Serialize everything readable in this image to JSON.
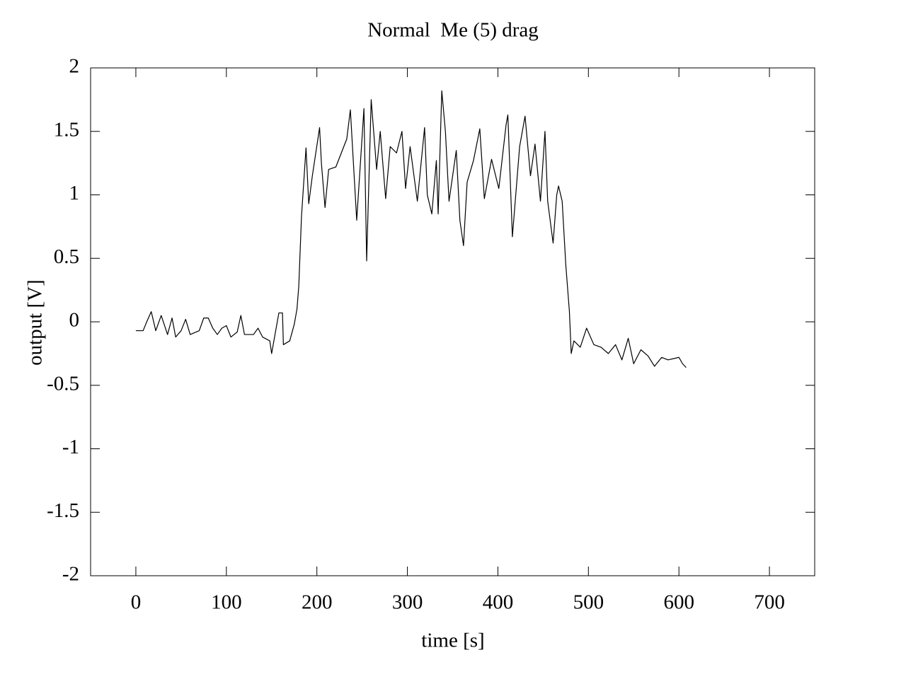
{
  "chart_data": {
    "type": "line",
    "title": "Normal  Me (5) drag",
    "xlabel": "time [s]",
    "ylabel": "output [V]",
    "xlim": [
      -50,
      750
    ],
    "ylim": [
      -2,
      2
    ],
    "xticks": [
      0,
      100,
      200,
      300,
      400,
      500,
      600,
      700
    ],
    "yticks": [
      -2,
      -1.5,
      -1,
      -0.5,
      0,
      0.5,
      1,
      1.5,
      2
    ],
    "series": [
      {
        "color": "#000000",
        "x": [
          0,
          8,
          12,
          17,
          22,
          28,
          35,
          40,
          44,
          50,
          55,
          60,
          70,
          75,
          80,
          85,
          90,
          95,
          100,
          105,
          112,
          116,
          120,
          130,
          135,
          140,
          148,
          150,
          155,
          158,
          162,
          163,
          170,
          175,
          178,
          180,
          183,
          188,
          191,
          195,
          203,
          205,
          209,
          213,
          221,
          233,
          237,
          244,
          252,
          255,
          260,
          266,
          270,
          276,
          281,
          288,
          294,
          298,
          303,
          311,
          319,
          322,
          327,
          332,
          334,
          338,
          342,
          346,
          354,
          358,
          362,
          366,
          373,
          380,
          385,
          393,
          401,
          409,
          411,
          416,
          424,
          430,
          436,
          441,
          447,
          452,
          455,
          461,
          465,
          467,
          471,
          475,
          479,
          481,
          484,
          491,
          498,
          506,
          514,
          522,
          530,
          537,
          544,
          550,
          558,
          566,
          573,
          581,
          588,
          600,
          604,
          608
        ],
        "values": [
          -0.07,
          -0.07,
          0.0,
          0.08,
          -0.07,
          0.05,
          -0.1,
          0.03,
          -0.12,
          -0.07,
          0.02,
          -0.1,
          -0.07,
          0.03,
          0.03,
          -0.05,
          -0.1,
          -0.05,
          -0.03,
          -0.12,
          -0.08,
          0.05,
          -0.1,
          -0.1,
          -0.05,
          -0.12,
          -0.15,
          -0.25,
          -0.05,
          0.07,
          0.07,
          -0.18,
          -0.15,
          -0.02,
          0.1,
          0.28,
          0.83,
          1.37,
          0.93,
          1.15,
          1.53,
          1.25,
          0.9,
          1.2,
          1.22,
          1.44,
          1.67,
          0.8,
          1.68,
          0.48,
          1.75,
          1.2,
          1.5,
          0.97,
          1.38,
          1.33,
          1.5,
          1.05,
          1.38,
          0.95,
          1.53,
          1.0,
          0.85,
          1.27,
          0.85,
          1.82,
          1.5,
          0.95,
          1.35,
          0.8,
          0.6,
          1.1,
          1.27,
          1.52,
          0.97,
          1.28,
          1.05,
          1.55,
          1.63,
          0.67,
          1.38,
          1.62,
          1.15,
          1.4,
          0.95,
          1.5,
          0.95,
          0.62,
          1.0,
          1.07,
          0.95,
          0.45,
          0.08,
          -0.25,
          -0.15,
          -0.2,
          -0.05,
          -0.18,
          -0.2,
          -0.25,
          -0.18,
          -0.3,
          -0.13,
          -0.33,
          -0.22,
          -0.27,
          -0.35,
          -0.28,
          -0.3,
          -0.28,
          -0.33,
          -0.36
        ]
      }
    ]
  }
}
